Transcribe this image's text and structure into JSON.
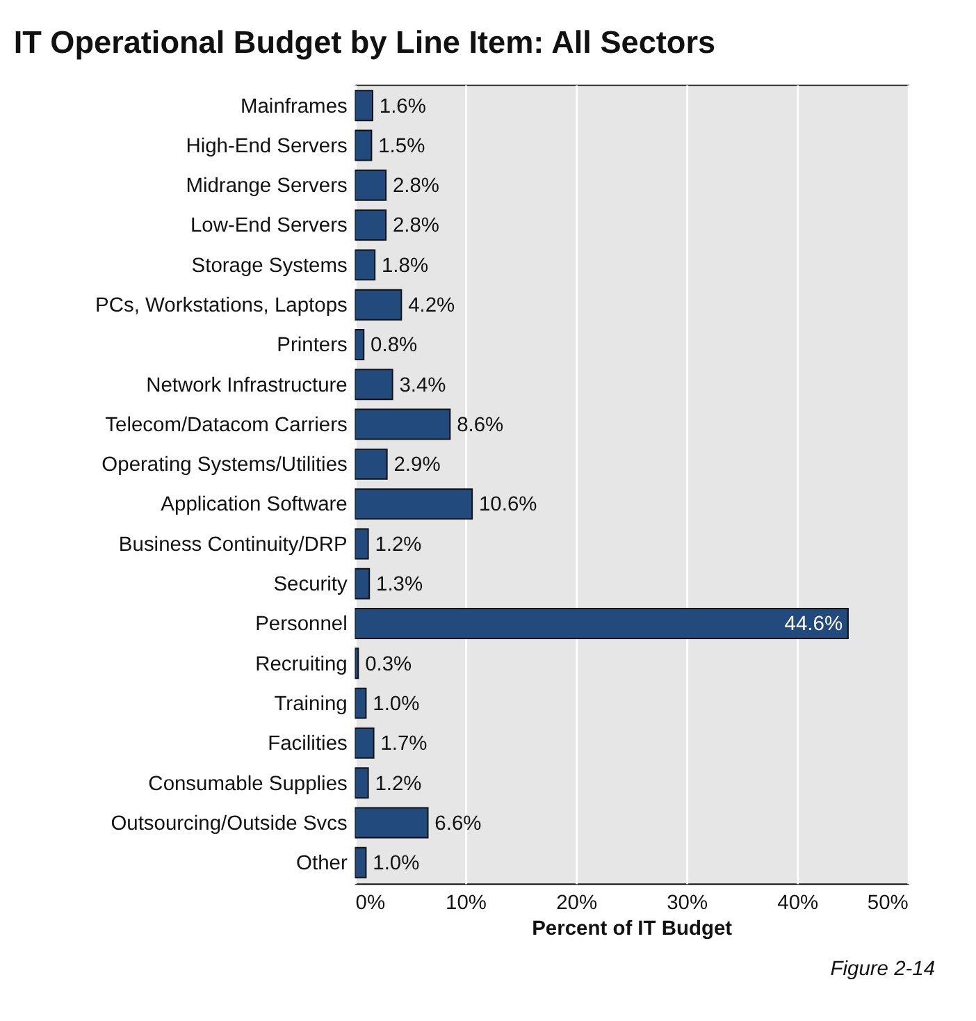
{
  "chart_data": {
    "type": "bar",
    "orientation": "horizontal",
    "title": "IT Operational Budget by Line Item: All Sectors",
    "categories": [
      "Mainframes",
      "High-End Servers",
      "Midrange Servers",
      "Low-End Servers",
      "Storage Systems",
      "PCs, Workstations, Laptops",
      "Printers",
      "Network Infrastructure",
      "Telecom/Datacom Carriers",
      "Operating Systems/Utilities",
      "Application Software",
      "Business Continuity/DRP",
      "Security",
      "Personnel",
      "Recruiting",
      "Training",
      "Facilities",
      "Consumable Supplies",
      "Outsourcing/Outside Svcs",
      "Other"
    ],
    "values": [
      1.6,
      1.5,
      2.8,
      2.8,
      1.8,
      4.2,
      0.8,
      3.4,
      8.6,
      2.9,
      10.6,
      1.2,
      1.3,
      44.6,
      0.3,
      1.0,
      1.7,
      1.2,
      6.6,
      1.0
    ],
    "value_labels": [
      "1.6%",
      "1.5%",
      "2.8%",
      "2.8%",
      "1.8%",
      "4.2%",
      "0.8%",
      "3.4%",
      "8.6%",
      "2.9%",
      "10.6%",
      "1.2%",
      "1.3%",
      "44.6%",
      "0.3%",
      "1.0%",
      "1.7%",
      "1.2%",
      "6.6%",
      "1.0%"
    ],
    "color": "#234a7c",
    "xlabel": "Percent of IT Budget",
    "xlim": [
      0,
      50
    ],
    "xticks": [
      {
        "value": 0,
        "label": "0%"
      },
      {
        "value": 10,
        "label": "10%"
      },
      {
        "value": 20,
        "label": "20%"
      },
      {
        "value": 30,
        "label": "30%"
      },
      {
        "value": 40,
        "label": "40%"
      },
      {
        "value": 50,
        "label": "50%"
      }
    ],
    "grid": "x",
    "annotations": [
      "Figure 2-14"
    ]
  }
}
